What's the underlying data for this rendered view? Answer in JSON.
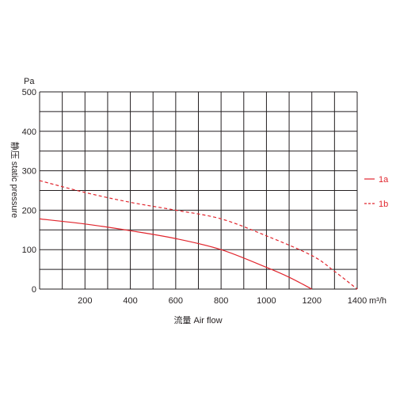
{
  "chart_data": {
    "type": "line",
    "title": "",
    "xlabel": "流量 Air flow",
    "ylabel": "静压 static pressure",
    "x_unit": "m³/h",
    "y_unit": "Pa",
    "xlim": [
      0,
      1400
    ],
    "ylim": [
      0,
      500
    ],
    "x_ticks": [
      "200",
      "400",
      "600",
      "800",
      "1000",
      "1200",
      "1400"
    ],
    "x_tick_values": [
      200,
      400,
      600,
      800,
      1000,
      1200,
      1400
    ],
    "y_ticks": [
      "0",
      "100",
      "200",
      "300",
      "400",
      "500"
    ],
    "y_tick_values": [
      0,
      100,
      200,
      300,
      400,
      500
    ],
    "grid": true,
    "legend_position": "right",
    "series": [
      {
        "name": "1a",
        "style": "solid",
        "color": "#e1262e",
        "x": [
          0,
          200,
          400,
          600,
          800,
          1000,
          1100,
          1200
        ],
        "y": [
          178,
          165,
          148,
          128,
          100,
          55,
          30,
          0
        ]
      },
      {
        "name": "1b",
        "style": "dashed",
        "color": "#e1262e",
        "x": [
          0,
          200,
          400,
          600,
          800,
          1000,
          1200,
          1300,
          1400
        ],
        "y": [
          275,
          245,
          220,
          200,
          178,
          135,
          85,
          45,
          0
        ]
      }
    ]
  }
}
